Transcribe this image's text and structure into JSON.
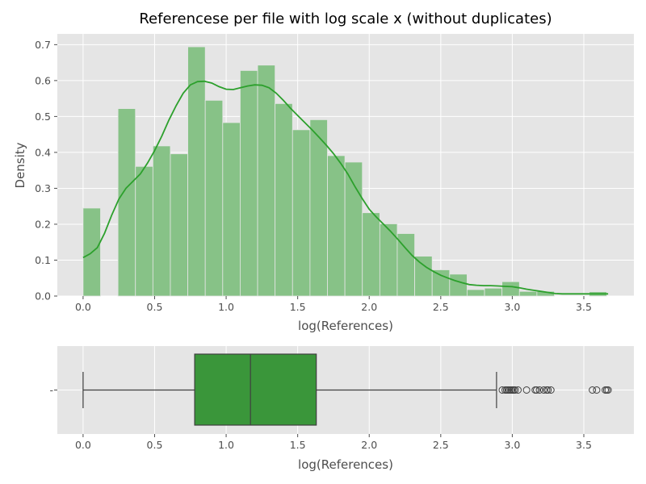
{
  "chart_data": [
    {
      "type": "histogram",
      "title": "Referencese per file with log scale x (without duplicates)",
      "xlabel": "log(References)",
      "ylabel": "Density",
      "xlim": [
        -0.18,
        3.85
      ],
      "ylim": [
        0,
        0.73
      ],
      "xticks": [
        "0.0",
        "0.5",
        "1.0",
        "1.5",
        "2.0",
        "2.5",
        "3.0",
        "3.5"
      ],
      "yticks": [
        "0.0",
        "0.1",
        "0.2",
        "0.3",
        "0.4",
        "0.5",
        "0.6",
        "0.7"
      ],
      "grid": true,
      "bar_color": "#87c287",
      "kde_color": "#2ca02c",
      "bin_width": 0.122,
      "bins": [
        {
          "x": 0.0,
          "density": 0.245
        },
        {
          "x": 0.122,
          "density": 0.0
        },
        {
          "x": 0.244,
          "density": 0.522
        },
        {
          "x": 0.366,
          "density": 0.361
        },
        {
          "x": 0.488,
          "density": 0.418
        },
        {
          "x": 0.61,
          "density": 0.396
        },
        {
          "x": 0.732,
          "density": 0.694
        },
        {
          "x": 0.854,
          "density": 0.545
        },
        {
          "x": 0.976,
          "density": 0.483
        },
        {
          "x": 1.098,
          "density": 0.628
        },
        {
          "x": 1.22,
          "density": 0.643
        },
        {
          "x": 1.342,
          "density": 0.536
        },
        {
          "x": 1.464,
          "density": 0.463
        },
        {
          "x": 1.586,
          "density": 0.491
        },
        {
          "x": 1.708,
          "density": 0.391
        },
        {
          "x": 1.83,
          "density": 0.373
        },
        {
          "x": 1.952,
          "density": 0.232
        },
        {
          "x": 2.074,
          "density": 0.201
        },
        {
          "x": 2.196,
          "density": 0.174
        },
        {
          "x": 2.318,
          "density": 0.111
        },
        {
          "x": 2.44,
          "density": 0.073
        },
        {
          "x": 2.562,
          "density": 0.061
        },
        {
          "x": 2.684,
          "density": 0.018
        },
        {
          "x": 2.806,
          "density": 0.022
        },
        {
          "x": 2.928,
          "density": 0.04
        },
        {
          "x": 3.05,
          "density": 0.013
        },
        {
          "x": 3.172,
          "density": 0.013
        },
        {
          "x": 3.294,
          "density": 0.0
        },
        {
          "x": 3.416,
          "density": 0.0
        },
        {
          "x": 3.538,
          "density": 0.012
        }
      ],
      "kde": [
        [
          0.0,
          0.107
        ],
        [
          0.05,
          0.118
        ],
        [
          0.1,
          0.135
        ],
        [
          0.15,
          0.175
        ],
        [
          0.2,
          0.225
        ],
        [
          0.25,
          0.27
        ],
        [
          0.3,
          0.3
        ],
        [
          0.35,
          0.32
        ],
        [
          0.4,
          0.34
        ],
        [
          0.45,
          0.37
        ],
        [
          0.5,
          0.405
        ],
        [
          0.55,
          0.445
        ],
        [
          0.6,
          0.49
        ],
        [
          0.65,
          0.53
        ],
        [
          0.7,
          0.565
        ],
        [
          0.75,
          0.588
        ],
        [
          0.8,
          0.597
        ],
        [
          0.85,
          0.598
        ],
        [
          0.9,
          0.593
        ],
        [
          0.95,
          0.583
        ],
        [
          1.0,
          0.576
        ],
        [
          1.05,
          0.575
        ],
        [
          1.1,
          0.58
        ],
        [
          1.15,
          0.585
        ],
        [
          1.2,
          0.588
        ],
        [
          1.25,
          0.587
        ],
        [
          1.3,
          0.58
        ],
        [
          1.35,
          0.565
        ],
        [
          1.4,
          0.545
        ],
        [
          1.45,
          0.523
        ],
        [
          1.5,
          0.503
        ],
        [
          1.55,
          0.483
        ],
        [
          1.6,
          0.463
        ],
        [
          1.65,
          0.442
        ],
        [
          1.7,
          0.42
        ],
        [
          1.75,
          0.397
        ],
        [
          1.8,
          0.37
        ],
        [
          1.85,
          0.34
        ],
        [
          1.9,
          0.305
        ],
        [
          1.95,
          0.272
        ],
        [
          2.0,
          0.242
        ],
        [
          2.05,
          0.22
        ],
        [
          2.1,
          0.2
        ],
        [
          2.15,
          0.18
        ],
        [
          2.2,
          0.158
        ],
        [
          2.25,
          0.135
        ],
        [
          2.3,
          0.113
        ],
        [
          2.35,
          0.095
        ],
        [
          2.4,
          0.08
        ],
        [
          2.45,
          0.068
        ],
        [
          2.5,
          0.058
        ],
        [
          2.55,
          0.05
        ],
        [
          2.6,
          0.043
        ],
        [
          2.65,
          0.037
        ],
        [
          2.7,
          0.032
        ],
        [
          2.75,
          0.03
        ],
        [
          2.8,
          0.029
        ],
        [
          2.85,
          0.029
        ],
        [
          2.9,
          0.028
        ],
        [
          2.95,
          0.027
        ],
        [
          3.0,
          0.026
        ],
        [
          3.05,
          0.023
        ],
        [
          3.1,
          0.019
        ],
        [
          3.15,
          0.016
        ],
        [
          3.2,
          0.013
        ],
        [
          3.25,
          0.01
        ],
        [
          3.3,
          0.007
        ],
        [
          3.35,
          0.006
        ],
        [
          3.4,
          0.006
        ],
        [
          3.45,
          0.006
        ],
        [
          3.5,
          0.006
        ],
        [
          3.55,
          0.006
        ],
        [
          3.6,
          0.006
        ],
        [
          3.67,
          0.006
        ]
      ]
    },
    {
      "type": "box",
      "xlabel": "log(References)",
      "xlim": [
        -0.18,
        3.85
      ],
      "xticks": [
        "0.0",
        "0.5",
        "1.0",
        "1.5",
        "2.0",
        "2.5",
        "3.0",
        "3.5"
      ],
      "ytick": "-",
      "grid": true,
      "box_color": "#3a963a",
      "min": 0.0,
      "q1": 0.78,
      "median": 1.17,
      "q3": 1.63,
      "whisker_high": 2.89,
      "outliers": [
        2.93,
        2.95,
        2.96,
        2.97,
        2.98,
        2.99,
        3.0,
        3.01,
        3.02,
        3.04,
        3.1,
        3.16,
        3.17,
        3.19,
        3.22,
        3.24,
        3.25,
        3.27,
        3.56,
        3.59,
        3.65,
        3.66,
        3.67
      ]
    }
  ]
}
